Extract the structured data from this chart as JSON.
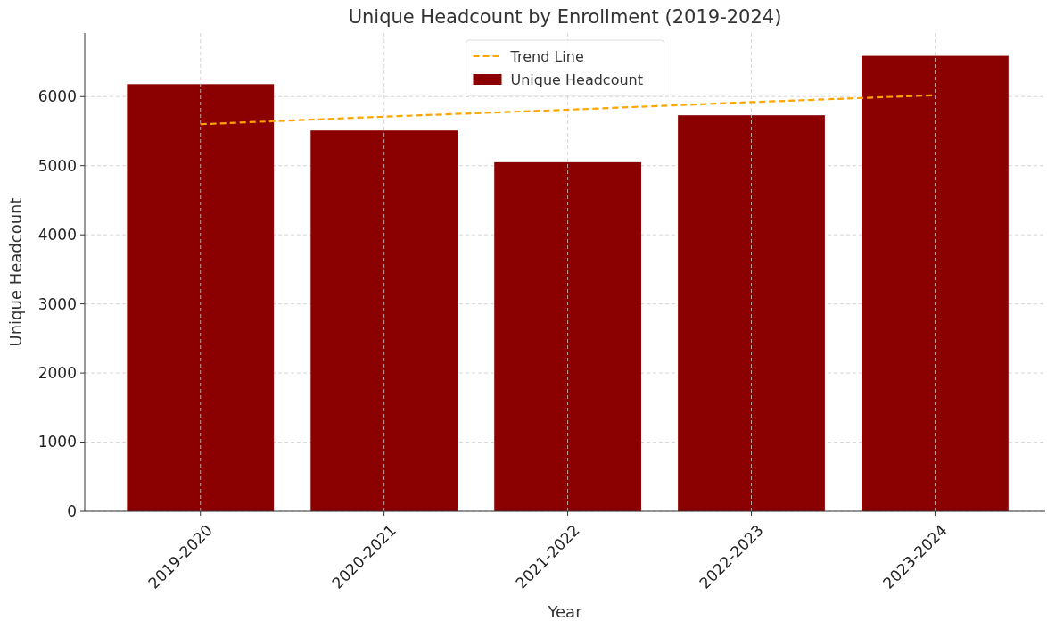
{
  "chart_data": {
    "type": "bar",
    "title": "Unique Headcount by Enrollment (2019-2024)",
    "xlabel": "Year",
    "ylabel": "Unique Headcount",
    "categories": [
      "2019-2020",
      "2020-2021",
      "2021-2022",
      "2022-2023",
      "2023-2024"
    ],
    "series": [
      {
        "name": "Unique Headcount",
        "color": "#8b0000",
        "values": [
          6180,
          5510,
          5050,
          5730,
          6590
        ]
      },
      {
        "name": "Trend Line",
        "type": "line",
        "color": "#ffa500",
        "line_style": "dashed",
        "marker": "none",
        "values": [
          5600,
          5710,
          5810,
          5920,
          6020
        ]
      }
    ],
    "ylim": [
      0,
      6920
    ],
    "yticks": [
      0,
      1000,
      2000,
      3000,
      4000,
      5000,
      6000
    ],
    "grid": true,
    "legend": "top"
  }
}
